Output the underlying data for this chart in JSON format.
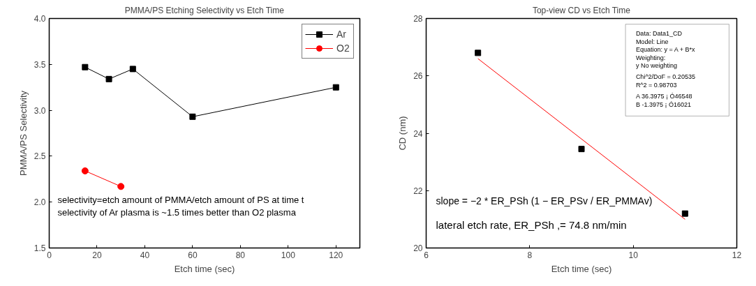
{
  "chart_data": [
    {
      "type": "line",
      "title": "PMMA/PS Etching Selectivity vs Etch Time",
      "xlabel": "Etch time (sec)",
      "ylabel": "PMMA/PS Selectivity",
      "xlim": [
        0,
        130
      ],
      "xticks": [
        0,
        20,
        40,
        60,
        80,
        100,
        120
      ],
      "ylim": [
        1.5,
        4.0
      ],
      "yticks": [
        1.5,
        {
          "value": 2,
          "label": "2.0"
        },
        2.5,
        {
          "value": 3,
          "label": "3.0"
        },
        3.5,
        {
          "value": 4,
          "label": "4.0"
        }
      ],
      "grid": false,
      "legend": "top right",
      "series": [
        {
          "name": "Ar",
          "color": "#000000",
          "marker": "square",
          "x": [
            15,
            25,
            35,
            60,
            120
          ],
          "values": [
            3.47,
            3.34,
            3.45,
            2.93,
            3.25
          ]
        },
        {
          "name": "O2",
          "color": "#ff0000",
          "marker": "circle",
          "x": [
            15,
            30
          ],
          "values": [
            2.34,
            2.17
          ]
        }
      ],
      "annotations": [
        "selectivity=etch amount of PMMA/etch amount of PS at time t",
        "selectivity of Ar plasma is ~1.5 times better than O2 plasma"
      ]
    },
    {
      "type": "scatter",
      "title": "Top-view CD vs Etch Time",
      "xlabel": "Etch time (sec)",
      "ylabel": "CD (nm)",
      "xlim": [
        6,
        12
      ],
      "xticks": [
        6,
        8,
        10,
        12
      ],
      "ylim": [
        20,
        28
      ],
      "yticks": [
        20,
        22,
        24,
        26,
        28
      ],
      "grid": false,
      "legend": false,
      "series": [
        {
          "color": "#000000",
          "marker": "square",
          "x": [
            7,
            9,
            11
          ],
          "values": [
            26.8,
            23.45,
            21.2
          ]
        },
        {
          "type": "line",
          "color": "#ff0000",
          "marker": "none",
          "x": [
            7,
            11
          ],
          "values": [
            26.6,
            21.0
          ]
        }
      ],
      "annotations": [
        "Data: Data1_CD",
        "Model: Line",
        "Equation: y = A + B*x",
        "Weighting:",
        "y No weighting",
        "Chi^2/DoF = 0.20535",
        "R^2 = 0.98703",
        "A 36.3975 ¡ Ó46548",
        "B -1.3975 ¡ Ó16021",
        "slope = −2 * ER_PSh (1 − ER_PSv / ER_PMMAv)",
        "lateral etch rate, ER_PSh ,= 74.8 nm/min"
      ]
    }
  ]
}
